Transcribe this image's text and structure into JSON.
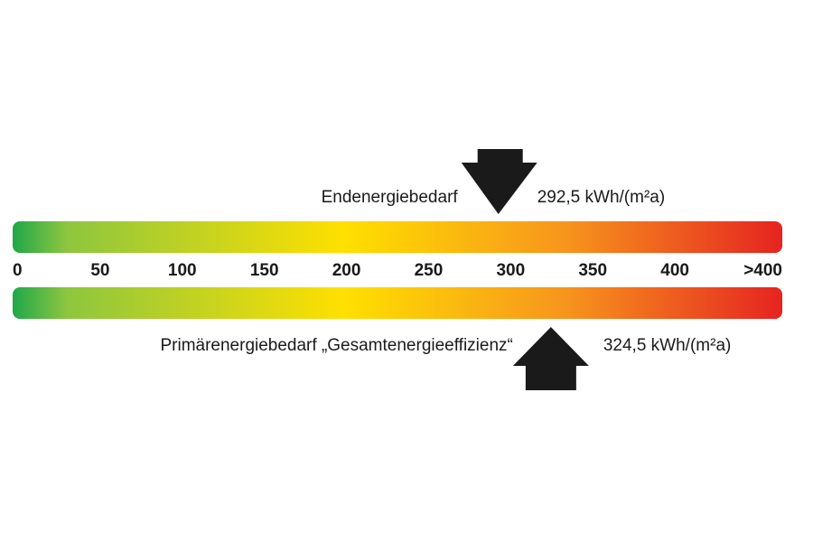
{
  "chart_data": {
    "type": "scale",
    "xlim": [
      0,
      450
    ],
    "xticks": [
      0,
      50,
      100,
      150,
      200,
      250,
      300,
      350,
      400,
      {
        "value": 450,
        "label": ">400"
      }
    ],
    "colors": [
      "#1fa84a",
      "#8dc63f",
      "#ffe000",
      "#f7941d",
      "#e52421"
    ],
    "markers": [
      {
        "name": "Endenergiebedarf",
        "value": 292.5,
        "value_label": "292,5 kWh/(m²a)",
        "position": "top"
      },
      {
        "name": "Primärenergiebedarf „Gesamtenergieeffizienz“",
        "value": 324.5,
        "value_label": "324,5 kWh/(m²a)",
        "position": "bottom"
      }
    ]
  }
}
